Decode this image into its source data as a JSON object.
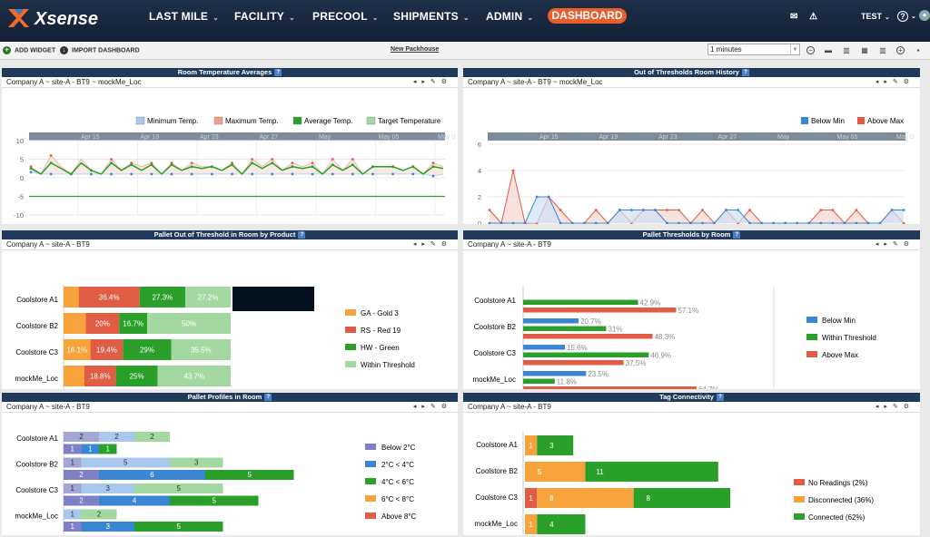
{
  "brand": "Xsense",
  "nav": {
    "items": [
      "LAST MILE",
      "FACILITY",
      "PRECOOL",
      "SHIPMENTS",
      "ADMIN"
    ],
    "active": "DASHBOARD",
    "user": "TEST",
    "help": "?"
  },
  "toolbar": {
    "add_widget": "ADD WIDGET",
    "import_dashboard": "IMPORT DASHBOARD",
    "new_packhouse": "New Packhouse",
    "interval": "1 minutes"
  },
  "colors": {
    "blue": "#3a86d4",
    "red": "#e05c44",
    "green": "#2aa02a",
    "orange": "#f7a33b",
    "lightgreen": "#a3d8a0",
    "purple": "#7f81c6",
    "lightblue": "#a8c8ee",
    "salmon": "#f2a08a"
  },
  "panels": {
    "p1": {
      "title": "Room Temperature Averages",
      "subtitle": "Company A ~ site-A - BT9 ~ mockMe_Loc"
    },
    "p2": {
      "title": "Out of Thresholds Room History",
      "subtitle": "Company A ~ site-A - BT9 ~ mockMe_Loc"
    },
    "p3": {
      "title": "Pallet Out of Threshold in Room by Product",
      "subtitle": "Company A ~ site-A - BT9"
    },
    "p4": {
      "title": "Pallet Thresholds by Room",
      "subtitle": "Company A ~ site-A - BT9"
    },
    "p5": {
      "title": "Pallet Profiles in Room",
      "subtitle": "Company A ~ site-A - BT9"
    },
    "p6": {
      "title": "Tag Connectivity",
      "subtitle": "Company A ~ site-A - BT9"
    }
  },
  "chart_data": [
    {
      "type": "line",
      "legend": [
        "Minimum Temp.",
        "Maximum Temp.",
        "Average Temp.",
        "Target Temperature"
      ],
      "x_ticks": [
        "Apr 15",
        "Apr 19",
        "Apr 23",
        "Apr 27",
        "May",
        "May 05",
        "May 0"
      ],
      "ylim": [
        -10,
        10
      ],
      "y_ticks": [
        10,
        5,
        0,
        -5,
        -10
      ],
      "series": [
        {
          "name": "Minimum Temp.",
          "values": [
            1.5,
            1,
            1,
            1,
            1,
            1,
            1,
            1,
            1,
            1,
            1,
            1,
            1,
            1,
            1,
            1,
            1,
            1,
            1,
            1,
            1,
            1,
            1,
            1,
            1,
            1,
            1,
            1,
            1,
            1,
            1,
            1,
            1,
            1,
            1,
            1,
            1,
            1,
            1,
            1,
            0.5,
            1
          ]
        },
        {
          "name": "Maximum Temp.",
          "values": [
            3,
            1,
            6,
            3,
            1,
            5,
            2,
            1,
            5,
            2,
            4,
            3,
            4,
            1,
            4,
            2,
            4,
            3,
            3,
            2,
            4,
            1,
            5,
            3,
            5,
            2,
            4,
            3,
            4,
            1,
            5,
            2,
            5,
            1,
            3,
            3,
            3,
            2,
            3,
            1,
            4,
            3
          ]
        },
        {
          "name": "Average Temp.",
          "values": [
            2.5,
            1,
            4,
            2.5,
            1,
            4,
            2,
            1,
            4,
            2,
            3.5,
            2,
            3.5,
            1,
            3.5,
            2,
            3,
            2.5,
            3,
            2,
            3.5,
            1,
            4,
            2.5,
            4,
            2,
            3,
            2.5,
            3,
            1,
            3.5,
            2,
            3.5,
            1,
            3,
            3,
            3,
            2,
            3,
            1,
            3,
            2.5
          ]
        },
        {
          "name": "Target Temperature",
          "values": [
            -5,
            -5
          ]
        }
      ]
    },
    {
      "type": "area",
      "legend": [
        "Below Min",
        "Above Max"
      ],
      "x_ticks": [
        "Apr 15",
        "Apr 19",
        "Apr 23",
        "Apr 27",
        "May",
        "May 05",
        "May 0"
      ],
      "ylim": [
        0,
        6
      ],
      "y_ticks": [
        6,
        4,
        2,
        0
      ],
      "series": [
        {
          "name": "Below Min",
          "values": [
            0,
            0,
            0,
            0,
            2,
            2,
            0,
            0,
            0,
            0,
            0,
            1,
            1,
            1,
            1,
            0,
            0,
            0,
            0,
            0,
            1,
            1,
            0,
            0,
            0,
            0,
            0,
            0,
            0,
            0,
            0,
            0,
            0,
            0,
            1,
            1
          ]
        },
        {
          "name": "Above Max",
          "values": [
            1,
            0,
            4,
            0,
            0,
            2,
            1,
            0,
            0,
            1,
            0,
            1,
            0,
            1,
            1,
            1,
            1,
            0,
            1,
            0,
            1,
            0,
            1,
            0,
            0,
            0,
            0,
            0,
            1,
            1,
            0,
            1,
            0,
            0,
            1,
            0
          ]
        }
      ]
    },
    {
      "type": "bar",
      "stacked": true,
      "categories": [
        "Coolstore A1",
        "Coolstore B2",
        "Coolstore C3",
        "mockMe_Loc"
      ],
      "legend": [
        "GA - Gold 3",
        "RS - Red 19",
        "HW - Green",
        "Within Threshold"
      ],
      "series": [
        {
          "name": "GA - Gold 3",
          "values": [
            9.1,
            13.3,
            16.1,
            12.5
          ],
          "labels": [
            "",
            "",
            "16.1%",
            ""
          ]
        },
        {
          "name": "RS - Red 19",
          "values": [
            36.4,
            20,
            19.4,
            18.8
          ],
          "labels": [
            "36.4%",
            "20%",
            "19.4%",
            "18.8%"
          ]
        },
        {
          "name": "HW - Green",
          "values": [
            27.3,
            16.7,
            29,
            25
          ],
          "labels": [
            "27.3%",
            "16.7%",
            "29%",
            "25%"
          ]
        },
        {
          "name": "Within Threshold",
          "values": [
            27.2,
            50,
            35.5,
            43.7
          ],
          "labels": [
            "27.2%",
            "50%",
            "35.5%",
            "43.7%"
          ]
        }
      ]
    },
    {
      "type": "bar",
      "orientation": "horizontal",
      "categories": [
        "Coolstore A1",
        "Coolstore B2",
        "Coolstore C3",
        "mockMe_Loc"
      ],
      "legend": [
        "Below Min",
        "Within Threshold",
        "Above Max"
      ],
      "series": [
        {
          "name": "Below Min",
          "values": [
            0,
            20.7,
            15.6,
            23.5
          ],
          "labels": [
            "",
            "20.7%",
            "15.6%",
            "23.5%"
          ]
        },
        {
          "name": "Within Threshold",
          "values": [
            42.9,
            31,
            46.9,
            11.8
          ],
          "labels": [
            "42.9%",
            "31%",
            "46.9%",
            "11.8%"
          ]
        },
        {
          "name": "Above Max",
          "values": [
            57.1,
            48.3,
            37.5,
            64.7
          ],
          "labels": [
            "57.1%",
            "48.3%",
            "37.5%",
            "64.7%"
          ]
        }
      ]
    },
    {
      "type": "bar",
      "stacked": true,
      "categories": [
        "Coolstore A1",
        "Coolstore B2",
        "Coolstore C3",
        "mockMe_Loc"
      ],
      "legend": [
        "Below 2°C",
        "2°C < 4°C",
        "4°C < 6°C",
        "6°C < 8°C",
        "Above 8°C"
      ],
      "rows": [
        [
          [
            2,
            2,
            2,
            0,
            0
          ],
          [
            1,
            1,
            1,
            0,
            0
          ]
        ],
        [
          [
            1,
            5,
            3,
            0,
            0
          ],
          [
            2,
            6,
            5,
            0,
            0
          ]
        ],
        [
          [
            1,
            3,
            5,
            0,
            0
          ],
          [
            2,
            4,
            5,
            0,
            0
          ]
        ],
        [
          [
            0,
            1,
            2,
            0,
            0
          ],
          [
            1,
            3,
            5,
            0,
            0
          ]
        ]
      ]
    },
    {
      "type": "bar",
      "stacked": true,
      "categories": [
        "Coolstore A1",
        "Coolstore B2",
        "Coolstore C3",
        "mockMe_Loc"
      ],
      "legend": [
        "No Readings (2%)",
        "Disconnected (36%)",
        "Connected (62%)"
      ],
      "series": [
        {
          "name": "No Readings",
          "values": [
            0,
            0,
            1,
            0
          ]
        },
        {
          "name": "Disconnected",
          "values": [
            1,
            5,
            8,
            1
          ]
        },
        {
          "name": "Connected",
          "values": [
            3,
            11,
            8,
            4
          ]
        }
      ]
    }
  ]
}
